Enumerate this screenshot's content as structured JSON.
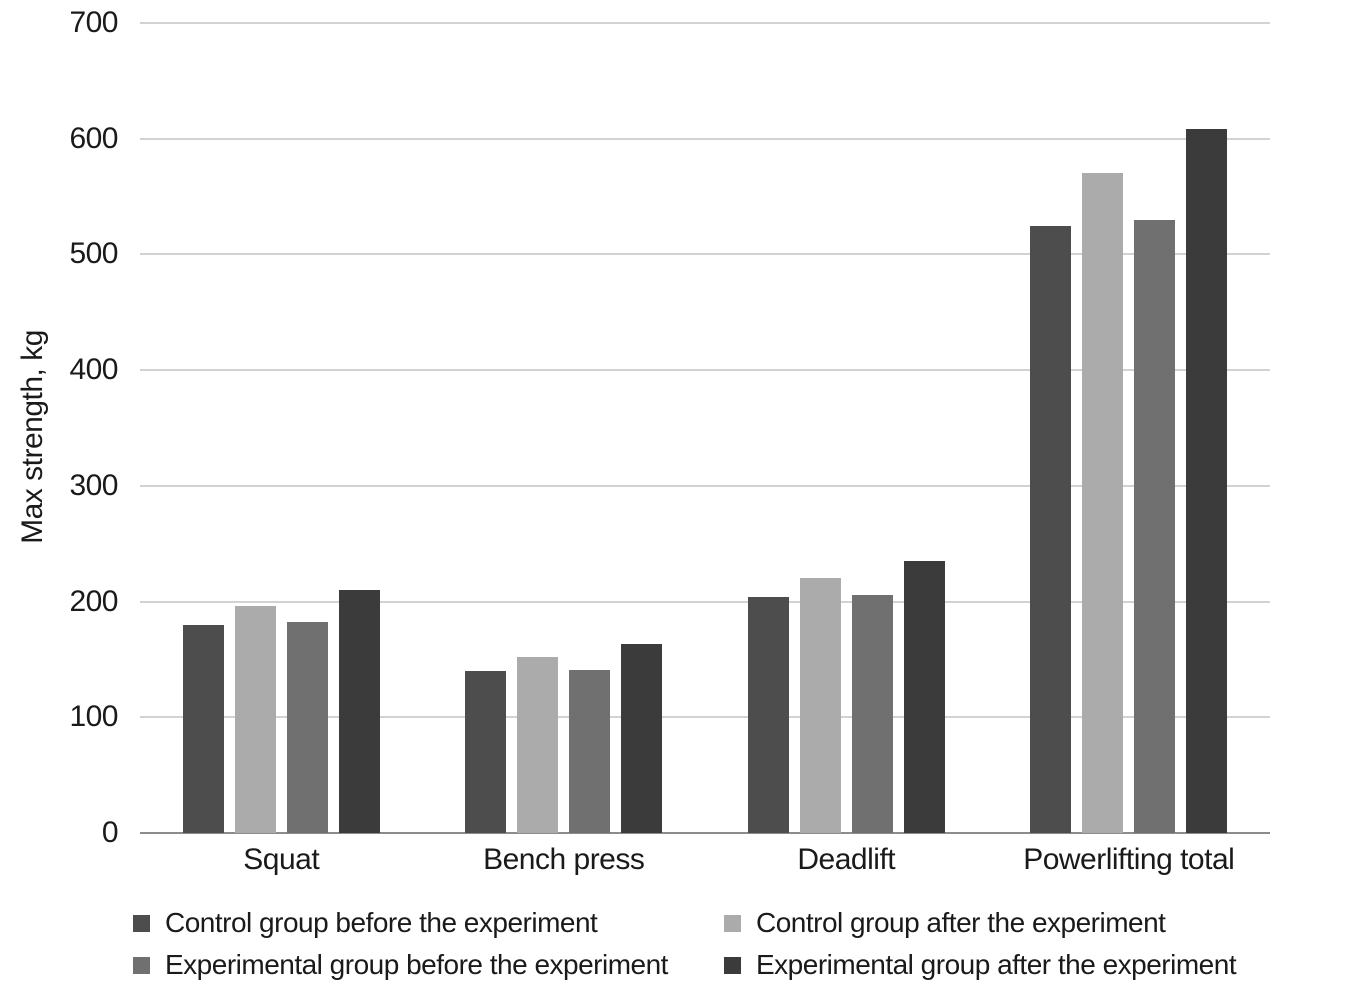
{
  "chart_data": {
    "type": "bar",
    "title": "",
    "xlabel": "",
    "ylabel": "Max strength, kg",
    "ylim": [
      0,
      700
    ],
    "ytick_step": 100,
    "grid": true,
    "legend_position": "bottom",
    "categories": [
      "Squat",
      "Bench press",
      "Deadlift",
      "Powerlifting total"
    ],
    "series": [
      {
        "name": "Control group before the experiment",
        "color": "#4d4d4d",
        "values": [
          180,
          140,
          204,
          525
        ]
      },
      {
        "name": "Control group after the experiment",
        "color": "#ababab",
        "values": [
          196,
          152,
          220,
          570
        ]
      },
      {
        "name": "Experimental group before the experiment",
        "color": "#707070",
        "values": [
          182,
          141,
          206,
          530
        ]
      },
      {
        "name": "Experimental group after the experiment",
        "color": "#3b3b3b",
        "values": [
          210,
          163,
          235,
          608
        ]
      }
    ],
    "colors": {
      "gridline": "#a6a6a6",
      "axis_line": "#8c8c8c",
      "text": "#1a1a1a"
    }
  }
}
